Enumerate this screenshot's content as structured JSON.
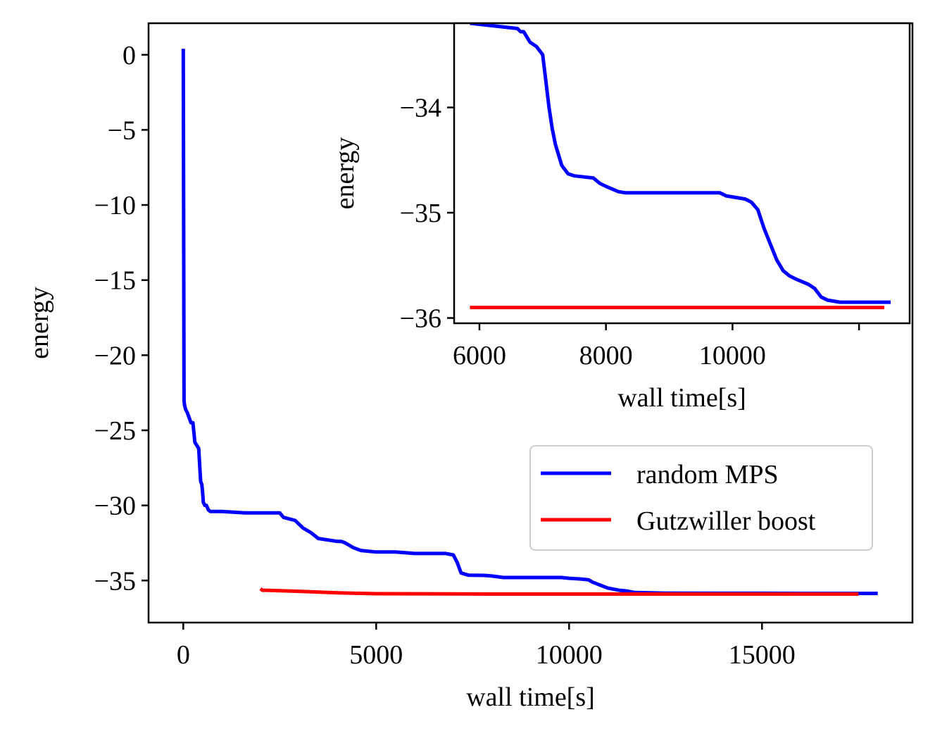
{
  "chart_data": [
    {
      "type": "line",
      "name": "main",
      "xlabel": "wall time[s]",
      "ylabel": "energy",
      "xlim": [
        -900,
        18900
      ],
      "ylim": [
        -37.8,
        2.1
      ],
      "xticks": [
        0,
        5000,
        10000,
        15000
      ],
      "xtick_labels": [
        "0",
        "5000",
        "10000",
        "15000"
      ],
      "yticks": [
        0,
        -5,
        -10,
        -15,
        -20,
        -25,
        -30,
        -35
      ],
      "ytick_labels": [
        "0",
        "−5",
        "−10",
        "−15",
        "−20",
        "−25",
        "−30",
        "−35"
      ],
      "legend": {
        "position": "lower-right",
        "entries": [
          "random MPS",
          "Gutzwiller boost"
        ]
      },
      "series": [
        {
          "name": "random MPS",
          "color": "#0000ff",
          "x": [
            0,
            20,
            30,
            60,
            100,
            200,
            250,
            300,
            400,
            450,
            480,
            500,
            520,
            560,
            600,
            650,
            700,
            1000,
            1600,
            2500,
            2600,
            2900,
            3100,
            3300,
            3500,
            4000,
            4100,
            4200,
            4400,
            4600,
            5000,
            5500,
            6000,
            6600,
            6800,
            7000,
            7100,
            7200,
            7400,
            7800,
            8000,
            8300,
            9000,
            9500,
            9800,
            10000,
            10300,
            10500,
            10600,
            10800,
            11000,
            11200,
            11300,
            11500,
            11700,
            12500,
            14000,
            15000,
            16000,
            17000,
            17500,
            18000
          ],
          "y": [
            0.4,
            -23,
            -23.3,
            -23.6,
            -23.8,
            -24.5,
            -24.5,
            -25.8,
            -26.2,
            -28.4,
            -28.6,
            -29.1,
            -29.8,
            -30.0,
            -30.0,
            -30.3,
            -30.4,
            -30.4,
            -30.5,
            -30.5,
            -30.8,
            -31.0,
            -31.5,
            -31.8,
            -32.2,
            -32.4,
            -32.4,
            -32.5,
            -32.8,
            -33.0,
            -33.1,
            -33.1,
            -33.2,
            -33.2,
            -33.2,
            -33.3,
            -33.8,
            -34.5,
            -34.65,
            -34.66,
            -34.7,
            -34.8,
            -34.8,
            -34.8,
            -34.8,
            -34.85,
            -34.9,
            -34.95,
            -35.1,
            -35.3,
            -35.5,
            -35.6,
            -35.65,
            -35.7,
            -35.8,
            -35.84,
            -35.85,
            -35.85,
            -35.86,
            -35.86,
            -35.86,
            -35.86
          ]
        },
        {
          "name": "Gutzwiller boost",
          "color": "#ff0000",
          "x": [
            2000,
            2050,
            2100,
            3000,
            4000,
            5000,
            8000,
            12000,
            17500
          ],
          "y": [
            -35.55,
            -35.65,
            -35.65,
            -35.72,
            -35.82,
            -35.88,
            -35.9,
            -35.9,
            -35.9
          ]
        }
      ]
    },
    {
      "type": "line",
      "name": "inset",
      "xlabel": "wall time[s]",
      "ylabel": "energy",
      "xlim": [
        5600,
        12800
      ],
      "ylim": [
        -36.05,
        -33.2
      ],
      "xticks": [
        6000,
        8000,
        10000,
        12000
      ],
      "xtick_labels": [
        "6000",
        "8000",
        "10000",
        ""
      ],
      "yticks": [
        -34,
        -35,
        -36
      ],
      "ytick_labels": [
        "−34",
        "−35",
        "−36"
      ],
      "series": [
        {
          "name": "random MPS",
          "color": "#0000ff",
          "x": [
            5850,
            6600,
            6650,
            6700,
            6800,
            6900,
            7000,
            7050,
            7100,
            7150,
            7200,
            7250,
            7300,
            7400,
            7500,
            7800,
            7900,
            8000,
            8200,
            8300,
            9000,
            9800,
            9900,
            10200,
            10300,
            10400,
            10500,
            10600,
            10700,
            10800,
            10900,
            11000,
            11200,
            11300,
            11400,
            11500,
            11700,
            12000,
            12300,
            12500
          ],
          "y": [
            -33.2,
            -33.25,
            -33.28,
            -33.28,
            -33.38,
            -33.42,
            -33.5,
            -33.75,
            -34.0,
            -34.2,
            -34.35,
            -34.45,
            -34.55,
            -34.63,
            -34.65,
            -34.67,
            -34.72,
            -34.75,
            -34.8,
            -34.81,
            -34.81,
            -34.81,
            -34.84,
            -34.87,
            -34.9,
            -34.97,
            -35.15,
            -35.3,
            -35.45,
            -35.55,
            -35.6,
            -35.63,
            -35.68,
            -35.72,
            -35.8,
            -35.83,
            -35.85,
            -35.85,
            -35.85,
            -35.85
          ]
        },
        {
          "name": "Gutzwiller boost",
          "color": "#ff0000",
          "x": [
            5850,
            12400
          ],
          "y": [
            -35.9,
            -35.9
          ]
        }
      ]
    }
  ]
}
